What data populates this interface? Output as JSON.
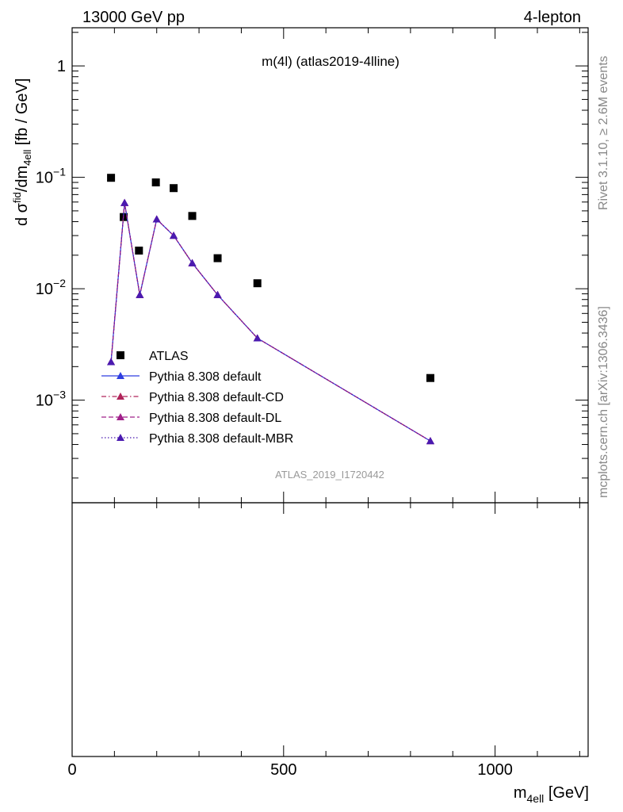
{
  "header": {
    "energy_label": "13000 GeV pp",
    "process_label": "4-lepton"
  },
  "side_text": {
    "rivet": "Rivet 3.1.10, ≥ 2.6M events",
    "mcplots": "mcplots.cern.ch [arXiv:1306.3436]"
  },
  "chart_data": {
    "type": "scatter",
    "title": "m(4l) (atlas2019-4lline)",
    "analysis_id": "ATLAS_2019_I1720442",
    "xlabel_main": "m",
    "xlabel_sub": "4ell",
    "xlabel_unit": " [GeV]",
    "ylabel_prefix": "d σ",
    "ylabel_sup": "fid",
    "ylabel_mid": "/dm",
    "ylabel_sub": "4ell",
    "ylabel_unit": " [fb / GeV]",
    "xlim": [
      0,
      1220
    ],
    "ylim": [
      0.00012,
      2.2
    ],
    "yscale": "log",
    "x_ticks": [
      0,
      500,
      1000
    ],
    "x_tick_labels": [
      "0",
      "500",
      "1000"
    ],
    "y_ticks": [
      0.001,
      0.01,
      0.1,
      1
    ],
    "y_tick_labels": [
      {
        "base": "10",
        "exp": "−3"
      },
      {
        "base": "10",
        "exp": "−2"
      },
      {
        "base": "10",
        "exp": "−1"
      },
      {
        "base": "1",
        "exp": ""
      }
    ],
    "legend_position": "lower-left",
    "series": [
      {
        "name": "ATLAS",
        "marker": "square",
        "color": "#000000",
        "x": [
          92,
          122,
          158,
          198,
          240,
          284,
          344,
          438,
          847
        ],
        "y": [
          0.099,
          0.044,
          0.022,
          0.09,
          0.08,
          0.045,
          0.0188,
          0.0112,
          0.00158
        ]
      },
      {
        "name": "Pythia 8.308 default",
        "marker": "triangle",
        "line": "solid",
        "color": "#2f3ee0",
        "x": [
          92,
          124,
          160,
          200,
          240,
          284,
          344,
          438,
          847
        ],
        "y": [
          0.0022,
          0.059,
          0.0088,
          0.042,
          0.03,
          0.017,
          0.0088,
          0.0036,
          0.00043
        ]
      },
      {
        "name": "Pythia 8.308 default-CD",
        "marker": "triangle",
        "line": "dashdot",
        "color": "#b0245a",
        "x": [
          92,
          124,
          160,
          200,
          240,
          284,
          344,
          438,
          847
        ],
        "y": [
          0.0022,
          0.059,
          0.0088,
          0.042,
          0.03,
          0.017,
          0.0088,
          0.0036,
          0.00043
        ]
      },
      {
        "name": "Pythia 8.308 default-DL",
        "marker": "triangle",
        "line": "dashed",
        "color": "#a0208a",
        "x": [
          92,
          124,
          160,
          200,
          240,
          284,
          344,
          438,
          847
        ],
        "y": [
          0.0022,
          0.059,
          0.0088,
          0.042,
          0.03,
          0.017,
          0.0088,
          0.0036,
          0.00043
        ]
      },
      {
        "name": "Pythia 8.308 default-MBR",
        "marker": "triangle",
        "line": "dotted",
        "color": "#4a1ab0",
        "x": [
          92,
          124,
          160,
          200,
          240,
          284,
          344,
          438,
          847
        ],
        "y": [
          0.0022,
          0.059,
          0.0088,
          0.042,
          0.03,
          0.017,
          0.0088,
          0.0036,
          0.00043
        ]
      }
    ]
  }
}
